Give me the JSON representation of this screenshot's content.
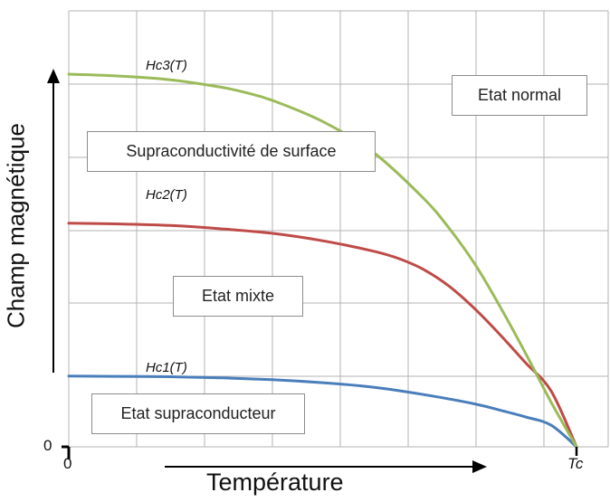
{
  "chart_data": {
    "type": "line",
    "xlabel": "Température",
    "ylabel": "Champ magnétique",
    "x_ticks": [
      {
        "value": 0,
        "label": "0"
      },
      {
        "value": 1,
        "label": "Tc"
      }
    ],
    "y_ticks": [
      {
        "value": 0,
        "label": "0"
      }
    ],
    "xlim": [
      0,
      1.06
    ],
    "ylim": [
      0,
      1.16
    ],
    "grid": true,
    "series": [
      {
        "name": "Hc1(T)",
        "color": "#4a7ebb",
        "x": [
          0,
          0.1,
          0.2,
          0.3,
          0.4,
          0.5,
          0.6,
          0.7,
          0.8,
          0.85,
          0.9,
          0.95,
          1.0
        ],
        "y": [
          0.19,
          0.189,
          0.188,
          0.185,
          0.18,
          0.172,
          0.16,
          0.14,
          0.115,
          0.098,
          0.08,
          0.058,
          0.0
        ]
      },
      {
        "name": "Hc2(T)",
        "color": "#be4b48",
        "x": [
          0,
          0.1,
          0.2,
          0.3,
          0.4,
          0.5,
          0.6,
          0.65,
          0.7,
          0.75,
          0.8,
          0.85,
          0.9,
          0.95,
          1.0
        ],
        "y": [
          0.6,
          0.598,
          0.594,
          0.585,
          0.573,
          0.553,
          0.525,
          0.505,
          0.475,
          0.43,
          0.37,
          0.3,
          0.225,
          0.15,
          0.0
        ]
      },
      {
        "name": "Hc3(T)",
        "color": "#9bbb59",
        "x": [
          0,
          0.1,
          0.2,
          0.3,
          0.35,
          0.4,
          0.5,
          0.6,
          0.7,
          0.75,
          0.8,
          0.85,
          0.9,
          0.95,
          1.0
        ],
        "y": [
          1.0,
          0.995,
          0.985,
          0.965,
          0.95,
          0.93,
          0.873,
          0.79,
          0.665,
          0.585,
          0.49,
          0.375,
          0.25,
          0.12,
          0.0
        ]
      }
    ],
    "curve_labels": [
      {
        "text": "Hc3(T)"
      },
      {
        "text": "Hc2(T)"
      },
      {
        "text": "Hc1(T)"
      }
    ],
    "region_labels": [
      {
        "text": "Etat normal"
      },
      {
        "text": "Supraconductivité de surface"
      },
      {
        "text": "Etat mixte"
      },
      {
        "text": "Etat supraconducteur"
      }
    ]
  },
  "colors": {
    "grid": "#b3b3b3",
    "axis": "#000000"
  }
}
